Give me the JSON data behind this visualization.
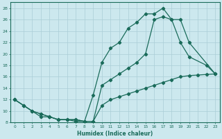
{
  "title": "",
  "xlabel": "Humidex (Indice chaleur)",
  "bg_color": "#cce8ee",
  "line_color": "#1a6b5a",
  "grid_color": "#aacdd6",
  "xlim": [
    -0.5,
    23.5
  ],
  "ylim": [
    8,
    29
  ],
  "xticks": [
    0,
    1,
    2,
    3,
    4,
    5,
    6,
    7,
    8,
    9,
    10,
    11,
    12,
    13,
    14,
    15,
    16,
    17,
    18,
    19,
    20,
    21,
    22,
    23
  ],
  "yticks": [
    8,
    10,
    12,
    14,
    16,
    18,
    20,
    22,
    24,
    26,
    28
  ],
  "line1_x": [
    0,
    1,
    2,
    3,
    4,
    5,
    6,
    7,
    8,
    9,
    10,
    11,
    12,
    13,
    14,
    15,
    16,
    17,
    18,
    19,
    20,
    22,
    23
  ],
  "line1_y": [
    12,
    11,
    10,
    9,
    9,
    8.5,
    8.5,
    8.2,
    8.2,
    12.8,
    18.5,
    21,
    22,
    24.5,
    25.5,
    27,
    27,
    28,
    26,
    22,
    19.5,
    18,
    16.5
  ],
  "line2_x": [
    0,
    1,
    2,
    3,
    4,
    5,
    6,
    7,
    8,
    9,
    10,
    11,
    12,
    13,
    14,
    15,
    16,
    17,
    18,
    19,
    20,
    23
  ],
  "line2_y": [
    12,
    11,
    10,
    9.5,
    9,
    8.5,
    8.5,
    8.5,
    8.2,
    8.2,
    14.5,
    15.5,
    16.5,
    17.5,
    18.5,
    20,
    26,
    26.5,
    26,
    26,
    22,
    16.5
  ],
  "line3_x": [
    0,
    1,
    2,
    3,
    4,
    5,
    6,
    7,
    8,
    9,
    10,
    11,
    12,
    13,
    14,
    15,
    16,
    17,
    18,
    19,
    20,
    21,
    22,
    23
  ],
  "line3_y": [
    12,
    11,
    10,
    9.5,
    9,
    8.5,
    8.5,
    8.5,
    8.2,
    8.2,
    11,
    12,
    12.5,
    13,
    13.5,
    14,
    14.5,
    15,
    15.5,
    16,
    16.2,
    16.3,
    16.4,
    16.5
  ]
}
